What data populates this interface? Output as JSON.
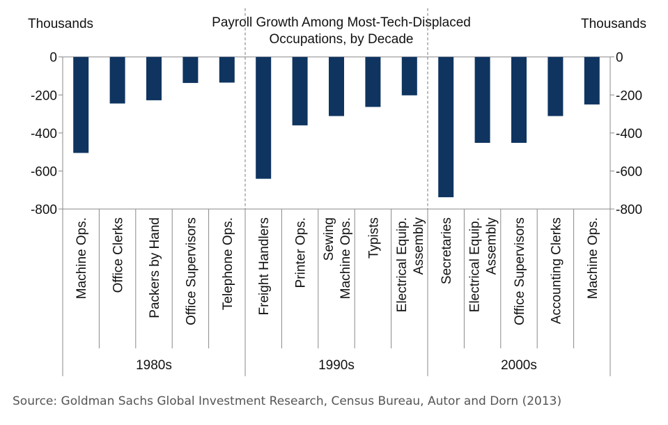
{
  "chart_data": {
    "type": "bar",
    "title": "Payroll Growth Among Most-Tech-Displaced Occupations, by Decade",
    "title_lines": [
      "Payroll Growth Among Most-Tech-Displaced",
      "Occupations, by Decade"
    ],
    "ylabel_left": "Thousands",
    "ylabel_right": "Thousands",
    "ylim": [
      -800,
      0
    ],
    "yticks": [
      0,
      -200,
      -400,
      -600,
      -800
    ],
    "bar_color": "#0f3460",
    "groups": [
      {
        "label": "1980s",
        "categories": [
          {
            "label": [
              "Machine Ops."
            ],
            "value": -505
          },
          {
            "label": [
              "Office Clerks"
            ],
            "value": -245
          },
          {
            "label": [
              "Packers by Hand"
            ],
            "value": -228
          },
          {
            "label": [
              "Office Supervisors"
            ],
            "value": -137
          },
          {
            "label": [
              "Telephone Ops."
            ],
            "value": -135
          }
        ]
      },
      {
        "label": "1990s",
        "categories": [
          {
            "label": [
              "Freight Handlers"
            ],
            "value": -641
          },
          {
            "label": [
              "Printer Ops."
            ],
            "value": -360
          },
          {
            "label": [
              "Sewing",
              "Machine Ops."
            ],
            "value": -311
          },
          {
            "label": [
              "Typists"
            ],
            "value": -263
          },
          {
            "label": [
              "Electrical Equip.",
              "Assembly"
            ],
            "value": -202
          }
        ]
      },
      {
        "label": "2000s",
        "categories": [
          {
            "label": [
              "Secretaries"
            ],
            "value": -738
          },
          {
            "label": [
              "Electrical Equip.",
              "Assembly"
            ],
            "value": -452
          },
          {
            "label": [
              "Office Supervisors"
            ],
            "value": -452
          },
          {
            "label": [
              "Accounting Clerks"
            ],
            "value": -311
          },
          {
            "label": [
              "Machine Ops."
            ],
            "value": -250
          }
        ]
      }
    ]
  },
  "source": "Source: Goldman Sachs Global Investment Research, Census Bureau, Autor and Dorn (2013)"
}
